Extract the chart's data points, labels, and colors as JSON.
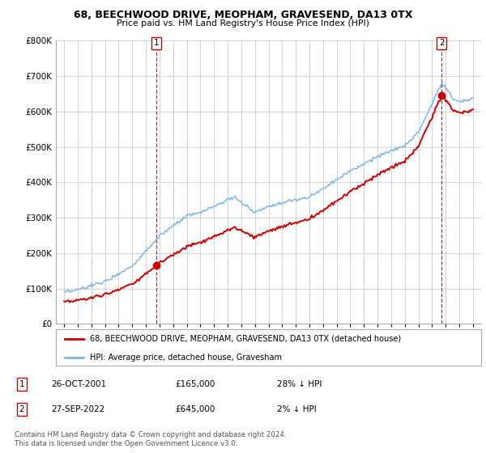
{
  "title1": "68, BEECHWOOD DRIVE, MEOPHAM, GRAVESEND, DA13 0TX",
  "title2": "Price paid vs. HM Land Registry's House Price Index (HPI)",
  "sale1_date": "26-OCT-2001",
  "sale1_price": 165000,
  "sale1_label": "1",
  "sale1_hpi": "28% ↓ HPI",
  "sale2_date": "27-SEP-2022",
  "sale2_price": 645000,
  "sale2_label": "2",
  "sale2_hpi": "2% ↓ HPI",
  "legend_line1": "68, BEECHWOOD DRIVE, MEOPHAM, GRAVESEND, DA13 0TX (detached house)",
  "legend_line2": "HPI: Average price, detached house, Gravesham",
  "footer": "Contains HM Land Registry data © Crown copyright and database right 2024.\nThis data is licensed under the Open Government Licence v3.0.",
  "hpi_color": "#7EB6E8",
  "price_color": "#CC0000",
  "marker_color": "#CC0000",
  "vline_color": "#CC0000",
  "grid_color": "#CCCCCC",
  "bg_color": "#FFFFFF",
  "ylim_max": 800000,
  "sale1_yr": 2001.79,
  "sale2_yr": 2022.71
}
